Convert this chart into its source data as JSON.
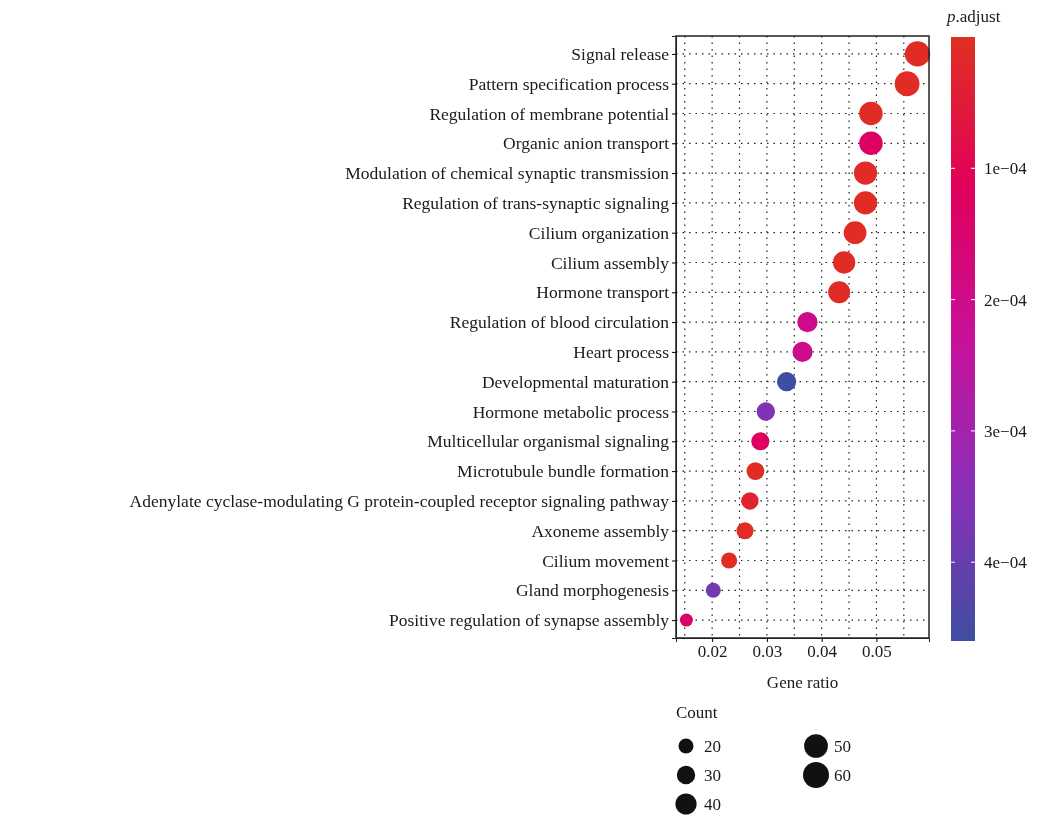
{
  "chart_data": {
    "type": "bubble",
    "xlabel": "Gene ratio",
    "clabel": "p.adjust",
    "legend_title": "Count",
    "categories": [
      "Signal release",
      "Pattern specification process",
      "Regulation of membrane potential",
      "Organic anion transport",
      "Modulation of chemical synaptic transmission",
      "Regulation of trans-synaptic signaling",
      "Cilium organization",
      "Cilium assembly",
      "Hormone transport",
      "Regulation of blood circulation",
      "Heart process",
      "Developmental maturation",
      "Hormone metabolic process",
      "Multicellular organismal signaling",
      "Microtubule bundle formation",
      "Adenylate cyclase-modulating G protein-coupled receptor signaling pathway",
      "Axoneme assembly",
      "Cilium movement",
      "Gland morphogenesis",
      "Positive regulation of synapse assembly"
    ],
    "values": [
      0.0575,
      0.0556,
      0.049,
      0.049,
      0.048,
      0.048,
      0.0461,
      0.0441,
      0.0432,
      0.0374,
      0.0365,
      0.0336,
      0.0298,
      0.0288,
      0.0279,
      0.0269,
      0.026,
      0.0231,
      0.0202,
      0.0153
    ],
    "sizes": [
      57,
      55,
      49,
      49,
      48,
      48,
      46,
      44,
      43,
      37,
      36,
      33,
      30,
      29,
      28,
      27,
      26,
      23,
      20,
      15
    ],
    "size_legend": [
      20,
      30,
      40,
      50,
      60
    ],
    "cvalues": [
      1e-05,
      1e-05,
      1e-05,
      0.00013,
      1e-05,
      1e-05,
      1e-05,
      1e-05,
      1e-05,
      0.0002,
      0.0002,
      0.00046,
      0.00036,
      0.00013,
      1e-05,
      3e-05,
      1e-05,
      1e-05,
      0.00038,
      0.00014
    ],
    "clim": [
      0,
      0.00046
    ],
    "cticks": [
      {
        "value": 0.0001,
        "label": "1e−04"
      },
      {
        "value": 0.0002,
        "label": "2e−04"
      },
      {
        "value": 0.0003,
        "label": "3e−04"
      },
      {
        "value": 0.0004,
        "label": "4e−04"
      }
    ],
    "xlim": [
      0.0134,
      0.0596
    ],
    "xticks": [
      0.02,
      0.03,
      0.04,
      0.05
    ],
    "grid": true,
    "marker": "circle",
    "orientation": "horizontal"
  }
}
